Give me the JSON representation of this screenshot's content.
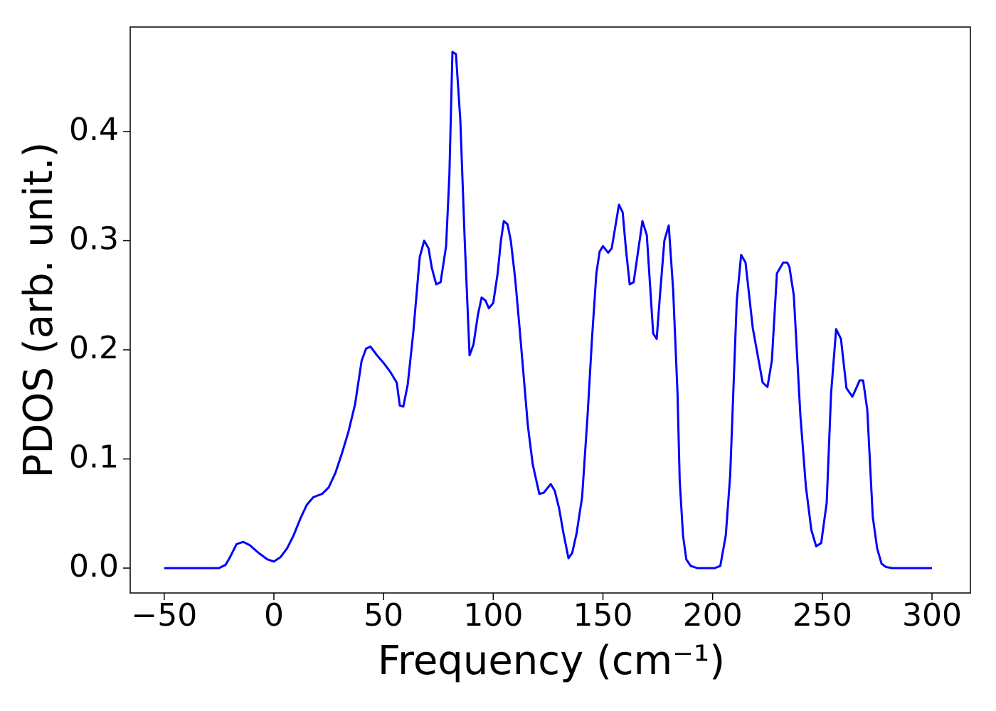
{
  "chart_data": {
    "type": "line",
    "xlabel": "Frequency (cm⁻¹)",
    "ylabel": "PDOS (arb. unit.)",
    "xlim": [
      -65.5,
      317.5
    ],
    "ylim": [
      -0.0228,
      0.4958
    ],
    "xticks": [
      {
        "value": -50,
        "label": "−50"
      },
      0,
      50,
      100,
      150,
      200,
      250,
      300
    ],
    "yticks": [
      {
        "value": 0,
        "label": "0.0"
      },
      0.1,
      0.2,
      0.3,
      0.4
    ],
    "grid": false,
    "series": [
      {
        "name": "PDOS",
        "color": "#0000ff",
        "x": [
          -50,
          -25,
          -22,
          -20,
          -17,
          -14,
          -11,
          -7,
          -3,
          0,
          3,
          6,
          9,
          12,
          15,
          18,
          22,
          25,
          28,
          31,
          34,
          37,
          40,
          42,
          44,
          47,
          50,
          53,
          56,
          57.4,
          59,
          61,
          63.5,
          66.5,
          68.5,
          70.5,
          72,
          74,
          76,
          78.5,
          80,
          81.4,
          83,
          85,
          87,
          89.2,
          91,
          93,
          94.7,
          96.5,
          98,
          100,
          102,
          103.5,
          104.8,
          106.5,
          108,
          110,
          112,
          115.8,
          118,
          121,
          123,
          126.2,
          128,
          130,
          132,
          134.3,
          136,
          138,
          140.5,
          143,
          145,
          147,
          148.5,
          150,
          152.4,
          154,
          157.3,
          159,
          160.5,
          162.2,
          164,
          166,
          168,
          170,
          172.9,
          174.5,
          176,
          178,
          180,
          182,
          184,
          185,
          186.5,
          188,
          190,
          193,
          201,
          203.5,
          206,
          208,
          211,
          213,
          215,
          218.3,
          222.8,
          225,
          227,
          229.3,
          232.2,
          234,
          235,
          237,
          240,
          242.5,
          245,
          247.2,
          249.5,
          252,
          254,
          256.3,
          258.5,
          261,
          263.7,
          265.5,
          267,
          268.6,
          270.5,
          273,
          275,
          277,
          279,
          282,
          300
        ],
        "values": [
          0,
          0,
          0.003,
          0.01,
          0.022,
          0.024,
          0.021,
          0.014,
          0.008,
          0.006,
          0.01,
          0.018,
          0.03,
          0.045,
          0.058,
          0.065,
          0.068,
          0.074,
          0.087,
          0.105,
          0.125,
          0.15,
          0.19,
          0.201,
          0.203,
          0.195,
          0.188,
          0.18,
          0.17,
          0.149,
          0.148,
          0.168,
          0.215,
          0.285,
          0.3,
          0.293,
          0.275,
          0.26,
          0.262,
          0.295,
          0.36,
          0.473,
          0.471,
          0.41,
          0.3,
          0.195,
          0.205,
          0.232,
          0.248,
          0.245,
          0.238,
          0.243,
          0.27,
          0.3,
          0.318,
          0.315,
          0.3,
          0.265,
          0.22,
          0.13,
          0.095,
          0.068,
          0.069,
          0.077,
          0.071,
          0.055,
          0.032,
          0.009,
          0.014,
          0.032,
          0.065,
          0.14,
          0.21,
          0.27,
          0.29,
          0.295,
          0.289,
          0.293,
          0.333,
          0.326,
          0.292,
          0.26,
          0.262,
          0.29,
          0.318,
          0.305,
          0.215,
          0.21,
          0.25,
          0.3,
          0.314,
          0.255,
          0.16,
          0.08,
          0.03,
          0.008,
          0.002,
          0,
          0,
          0.002,
          0.03,
          0.085,
          0.245,
          0.287,
          0.28,
          0.22,
          0.17,
          0.166,
          0.19,
          0.27,
          0.28,
          0.28,
          0.276,
          0.25,
          0.14,
          0.075,
          0.035,
          0.02,
          0.023,
          0.06,
          0.16,
          0.219,
          0.21,
          0.165,
          0.157,
          0.165,
          0.172,
          0.172,
          0.145,
          0.047,
          0.018,
          0.004,
          0.001,
          0,
          0
        ]
      }
    ]
  }
}
